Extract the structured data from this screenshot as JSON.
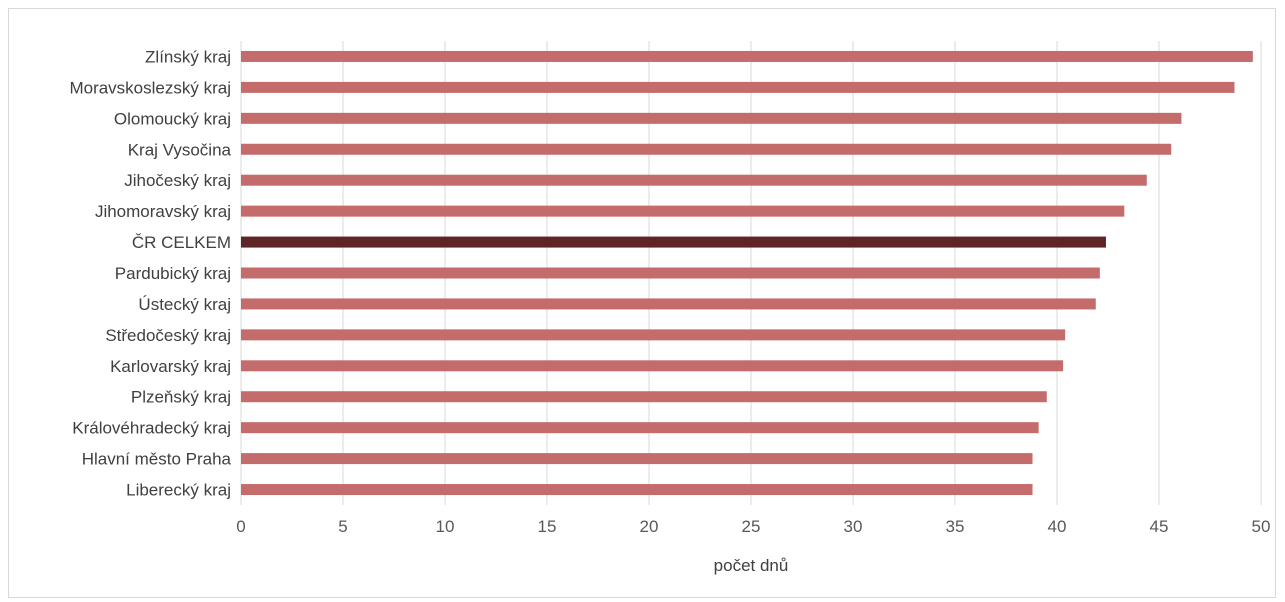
{
  "chart_data": {
    "type": "bar",
    "orientation": "horizontal",
    "categories": [
      "Zlínský kraj",
      "Moravskoslezský kraj",
      "Olomoucký kraj",
      "Kraj Vysočina",
      "Jihočeský kraj",
      "Jihomoravský kraj",
      "ČR CELKEM",
      "Pardubický kraj",
      "Ústecký kraj",
      "Středočeský kraj",
      "Karlovarský kraj",
      "Plzeňský kraj",
      "Královéhradecký kraj",
      "Hlavní město Praha",
      "Liberecký kraj"
    ],
    "values": [
      49.6,
      48.7,
      46.1,
      45.6,
      44.4,
      43.3,
      42.4,
      42.1,
      41.9,
      40.4,
      40.3,
      39.5,
      39.1,
      38.8,
      38.8
    ],
    "highlight_category": "ČR CELKEM",
    "title": "",
    "xlabel": "počet dnů",
    "ylabel": "",
    "xlim": [
      0,
      50
    ],
    "xticks": [
      "0",
      "5",
      "10",
      "15",
      "20",
      "25",
      "30",
      "35",
      "40",
      "45",
      "50"
    ],
    "grid": "vertical",
    "legend": "none",
    "colors": {
      "bar": "#c46b6b",
      "highlight": "#5e2426",
      "grid": "#d9d9d9"
    }
  }
}
